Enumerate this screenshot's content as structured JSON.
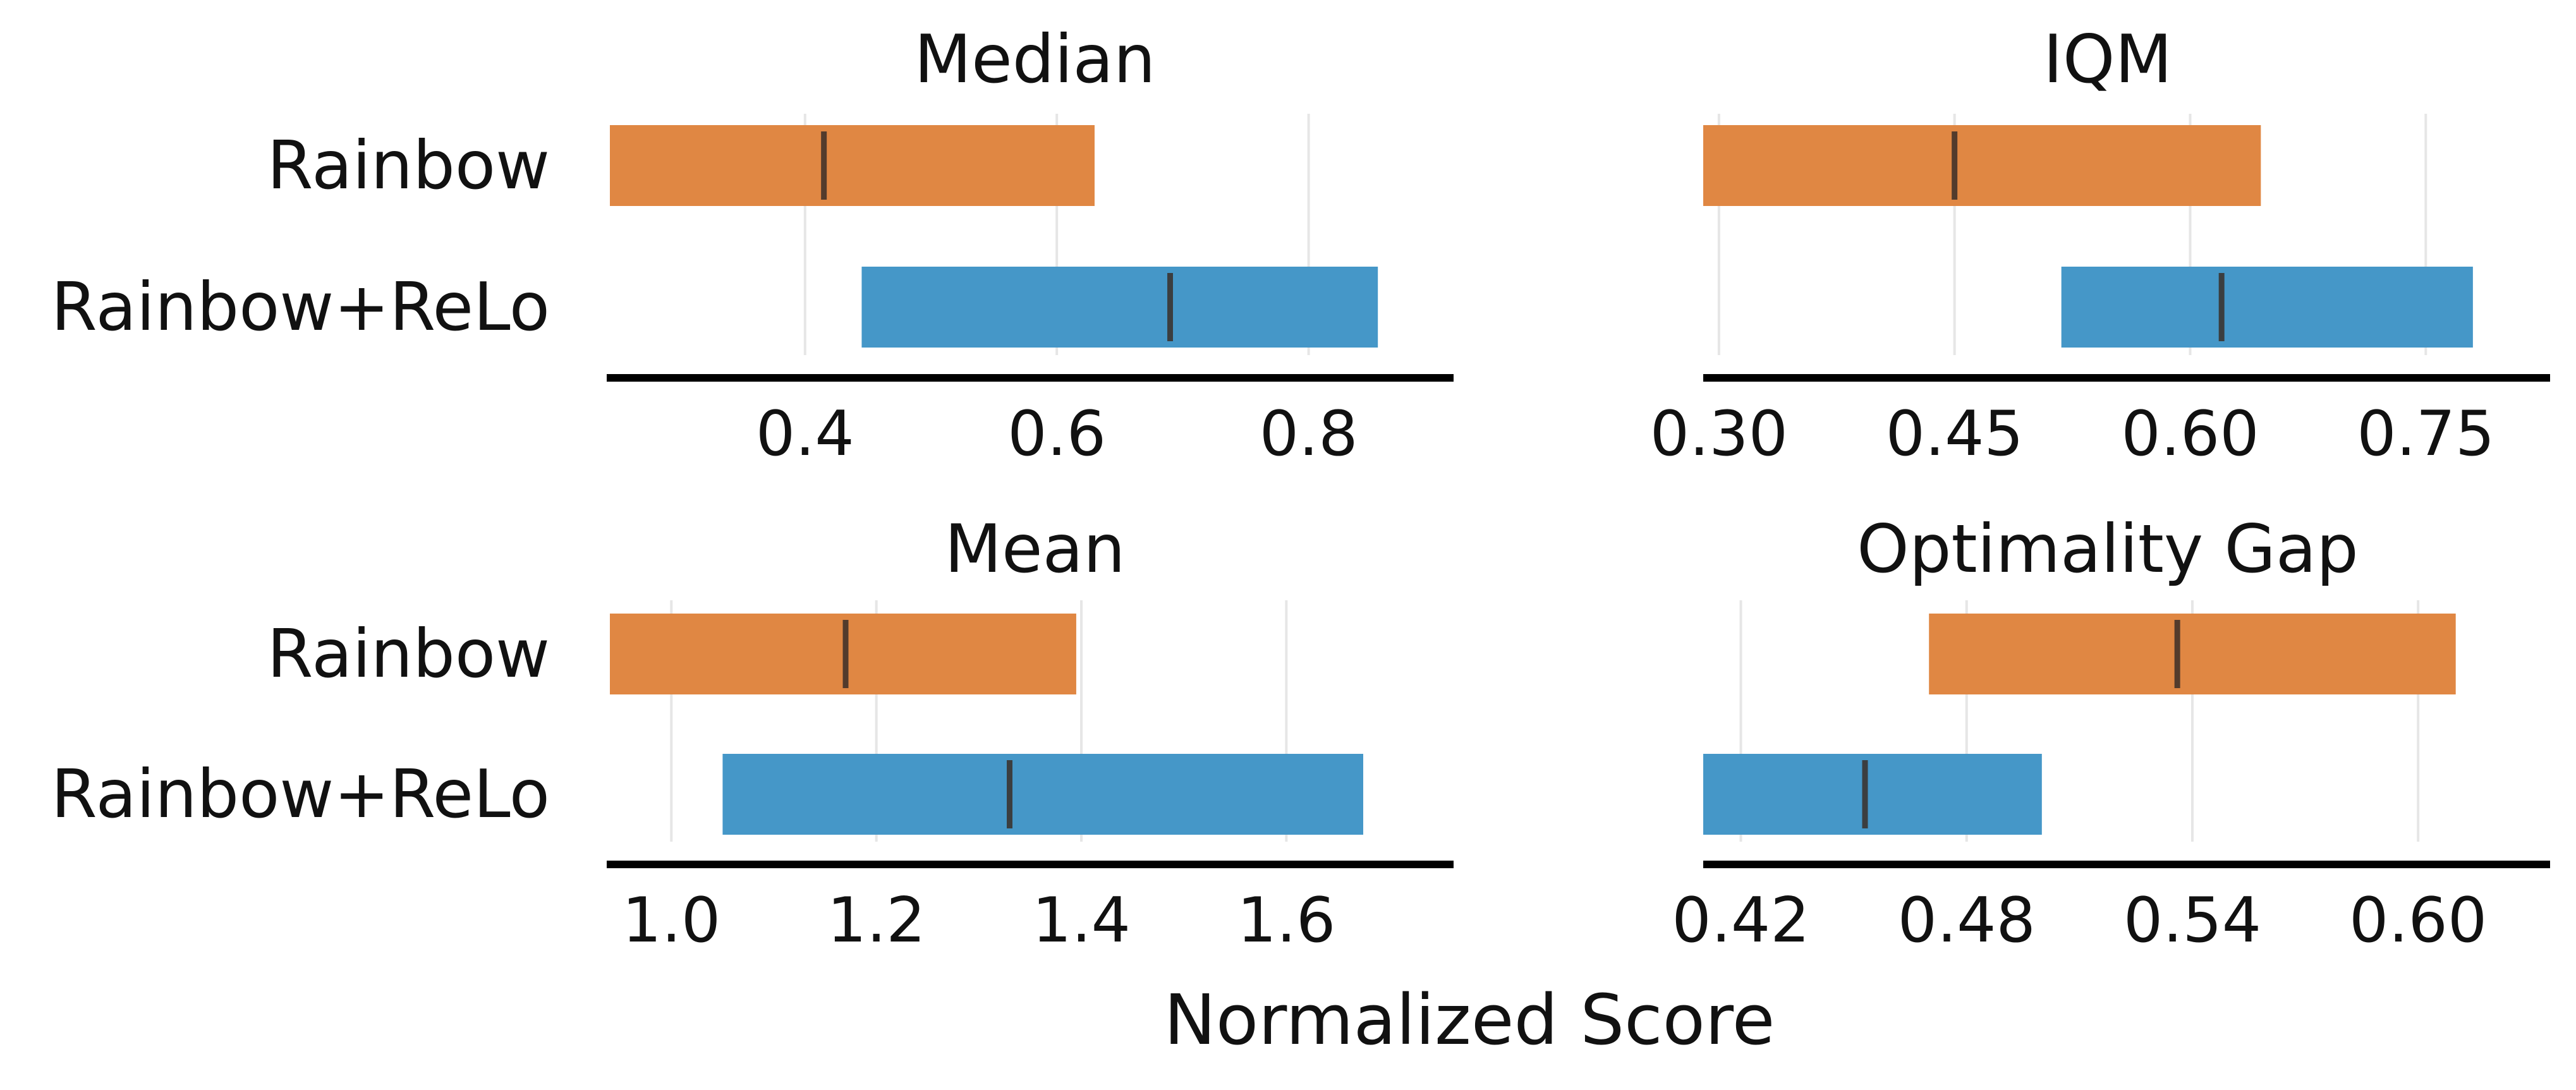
{
  "figure": {
    "xlabel": "Normalized Score"
  },
  "colors": {
    "Rainbow": "#e08743",
    "Rainbow+ReLo": "#4597c8",
    "median_line": "#3a2e28",
    "grid": "#e6e6e6",
    "axis": "#000000"
  },
  "chart_data": [
    {
      "type": "bar",
      "title": "Median",
      "categories": [
        "Rainbow",
        "Rainbow+ReLo"
      ],
      "xlim": [
        0.245,
        0.88
      ],
      "ticks": [
        0.4,
        0.6,
        0.8
      ],
      "tick_labels": [
        "0.4",
        "0.6",
        "0.8"
      ],
      "intervals": [
        {
          "name": "Rainbow",
          "low": 0.245,
          "high": 0.63,
          "point": 0.415
        },
        {
          "name": "Rainbow+ReLo",
          "low": 0.445,
          "high": 0.855,
          "point": 0.69
        }
      ]
    },
    {
      "type": "bar",
      "title": "IQM",
      "categories": [
        "Rainbow",
        "Rainbow+ReLo"
      ],
      "xlim": [
        0.29,
        0.805
      ],
      "ticks": [
        0.3,
        0.45,
        0.6,
        0.75
      ],
      "tick_labels": [
        "0.30",
        "0.45",
        "0.60",
        "0.75"
      ],
      "intervals": [
        {
          "name": "Rainbow",
          "low": 0.29,
          "high": 0.645,
          "point": 0.45
        },
        {
          "name": "Rainbow+ReLo",
          "low": 0.518,
          "high": 0.78,
          "point": 0.62
        }
      ]
    },
    {
      "type": "bar",
      "title": "Mean",
      "categories": [
        "Rainbow",
        "Rainbow+ReLo"
      ],
      "xlim": [
        0.94,
        1.72
      ],
      "ticks": [
        1.0,
        1.2,
        1.4,
        1.6
      ],
      "tick_labels": [
        "1.0",
        "1.2",
        "1.4",
        "1.6"
      ],
      "intervals": [
        {
          "name": "Rainbow",
          "low": 0.94,
          "high": 1.395,
          "point": 1.17
        },
        {
          "name": "Rainbow+ReLo",
          "low": 1.05,
          "high": 1.675,
          "point": 1.33
        }
      ]
    },
    {
      "type": "bar",
      "title": "Optimality Gap",
      "categories": [
        "Rainbow",
        "Rainbow+ReLo"
      ],
      "xlim": [
        0.41,
        0.625
      ],
      "ticks": [
        0.42,
        0.48,
        0.54,
        0.6
      ],
      "tick_labels": [
        "0.42",
        "0.48",
        "0.54",
        "0.60"
      ],
      "intervals": [
        {
          "name": "Rainbow",
          "low": 0.47,
          "high": 0.61,
          "point": 0.536
        },
        {
          "name": "Rainbow+ReLo",
          "low": 0.41,
          "high": 0.5,
          "point": 0.453
        }
      ]
    }
  ]
}
